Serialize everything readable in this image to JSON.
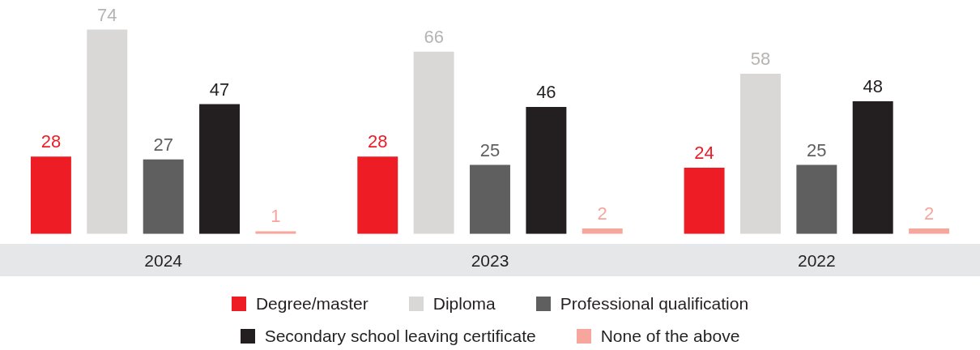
{
  "chart_data": {
    "type": "bar",
    "categories": [
      "2024",
      "2023",
      "2022"
    ],
    "series": [
      {
        "name": "Degree/master",
        "color": "#ee1c25",
        "values": [
          28,
          28,
          24
        ]
      },
      {
        "name": "Diploma",
        "color": "#d9d8d6",
        "values": [
          74,
          66,
          58
        ]
      },
      {
        "name": "Professional qualification",
        "color": "#5f5f5f",
        "values": [
          27,
          25,
          25
        ]
      },
      {
        "name": "Secondary school leaving certificate",
        "color": "#231f20",
        "values": [
          47,
          46,
          48
        ]
      },
      {
        "name": "None of the above",
        "color": "#f6a69c",
        "values": [
          1,
          2,
          2
        ]
      }
    ],
    "tick_labels": "x",
    "grid": false,
    "legend": "bottom",
    "data_labels": true
  }
}
